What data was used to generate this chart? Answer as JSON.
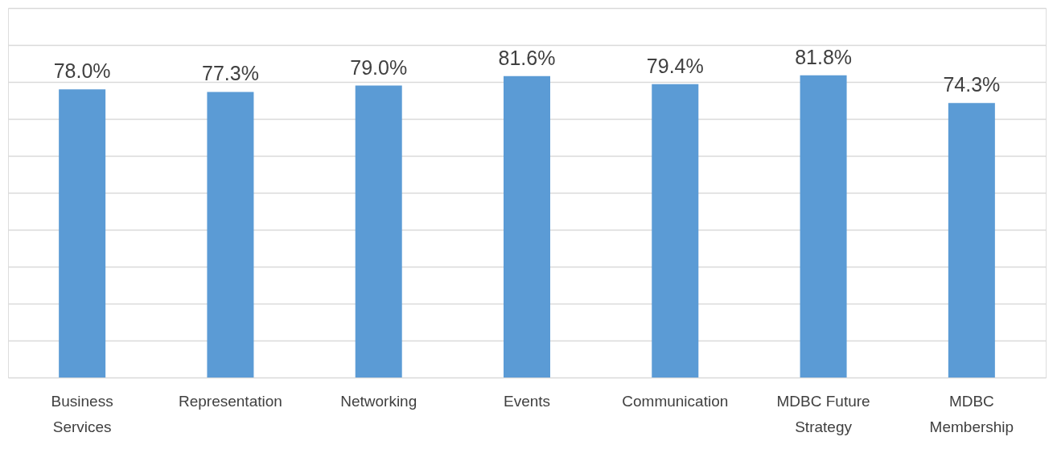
{
  "chart_data": {
    "type": "bar",
    "categories": [
      "Business Services",
      "Representation",
      "Networking",
      "Events",
      "Communication",
      "MDBC Future Strategy",
      "MDBC Membership"
    ],
    "values": [
      78.0,
      77.3,
      79.0,
      81.6,
      79.4,
      81.8,
      74.3
    ],
    "value_labels": [
      "78.0%",
      "77.3%",
      "79.0%",
      "81.6%",
      "79.4%",
      "81.8%",
      "74.3%"
    ],
    "color": "#5b9bd5",
    "ylim": [
      0,
      100
    ],
    "yticks": [
      {
        "value": 0,
        "label": null
      },
      {
        "value": 10,
        "label": null
      },
      {
        "value": 20,
        "label": null
      },
      {
        "value": 30,
        "label": null
      },
      {
        "value": 40,
        "label": null
      },
      {
        "value": 50,
        "label": null
      },
      {
        "value": 60,
        "label": null
      },
      {
        "value": 70,
        "label": null
      },
      {
        "value": 80,
        "label": null
      },
      {
        "value": 90,
        "label": null
      },
      {
        "value": 100,
        "label": null
      }
    ],
    "grid": "y",
    "tick_labels": "x"
  }
}
